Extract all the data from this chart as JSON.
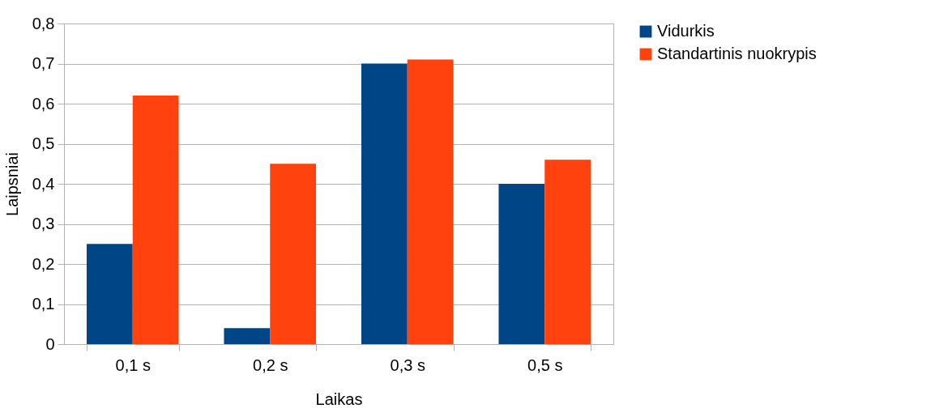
{
  "chart_data": {
    "type": "bar",
    "xlabel": "Laikas",
    "ylabel": "Laipsniai",
    "categories": [
      "0,1 s",
      "0,2 s",
      "0,3 s",
      "0,5 s"
    ],
    "series": [
      {
        "name": "Vidurkis",
        "color": "#004586",
        "values": [
          0.25,
          0.04,
          0.7,
          0.4
        ]
      },
      {
        "name": "Standartinis nuokrypis",
        "color": "#ff420e",
        "values": [
          0.62,
          0.45,
          0.71,
          0.46
        ]
      }
    ],
    "ylim": [
      0,
      0.8
    ],
    "yticks": [
      {
        "value": 0,
        "label": "0"
      },
      {
        "value": 0.1,
        "label": "0,1"
      },
      {
        "value": 0.2,
        "label": "0,2"
      },
      {
        "value": 0.3,
        "label": "0,3"
      },
      {
        "value": 0.4,
        "label": "0,4"
      },
      {
        "value": 0.5,
        "label": "0,5"
      },
      {
        "value": 0.6,
        "label": "0,6"
      },
      {
        "value": 0.7,
        "label": "0,7"
      },
      {
        "value": 0.8,
        "label": "0,8"
      }
    ],
    "grid": "y",
    "legend": "right"
  }
}
